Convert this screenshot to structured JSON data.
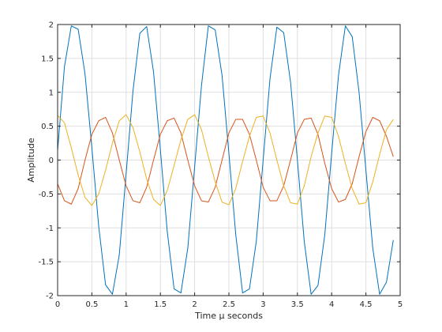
{
  "chart_data": {
    "type": "line",
    "title": "",
    "xlabel": "Time μ seconds",
    "ylabel": "Amplitude",
    "xlim": [
      0,
      5
    ],
    "ylim": [
      -2,
      2
    ],
    "grid": true,
    "x_ticks": [
      "0",
      "0.5",
      "1",
      "1.5",
      "2",
      "2.5",
      "3",
      "3.5",
      "4",
      "4.5",
      "5"
    ],
    "y_ticks": [
      "-2",
      "-1.5",
      "-1",
      "-0.5",
      "0",
      "0.5",
      "1",
      "1.5",
      "2"
    ],
    "series": [
      {
        "color": "#0072BD",
        "points": [
          [
            0,
            0.14
          ],
          [
            0.1,
            1.38
          ],
          [
            0.2,
            1.98
          ],
          [
            0.3,
            1.93
          ],
          [
            0.4,
            1.27
          ],
          [
            0.5,
            0.18
          ],
          [
            0.6,
            -0.98
          ],
          [
            0.7,
            -1.84
          ],
          [
            0.8,
            -1.98
          ],
          [
            0.9,
            -1.4
          ],
          [
            1.0,
            -0.2
          ],
          [
            1.1,
            1.02
          ],
          [
            1.2,
            1.87
          ],
          [
            1.3,
            1.97
          ],
          [
            1.4,
            1.3
          ],
          [
            1.5,
            0.15
          ],
          [
            1.6,
            -1.05
          ],
          [
            1.7,
            -1.9
          ],
          [
            1.8,
            -1.96
          ],
          [
            1.9,
            -1.3
          ],
          [
            2.0,
            -0.1
          ],
          [
            2.1,
            1.1
          ],
          [
            2.2,
            1.98
          ],
          [
            2.3,
            1.92
          ],
          [
            2.4,
            1.25
          ],
          [
            2.5,
            0.1
          ],
          [
            2.6,
            -1.1
          ],
          [
            2.7,
            -1.96
          ],
          [
            2.8,
            -1.9
          ],
          [
            2.9,
            -1.2
          ],
          [
            3.0,
            0.0
          ],
          [
            3.1,
            1.2
          ],
          [
            3.2,
            1.96
          ],
          [
            3.3,
            1.88
          ],
          [
            3.4,
            1.15
          ],
          [
            3.5,
            0.0
          ],
          [
            3.6,
            -1.2
          ],
          [
            3.7,
            -1.98
          ],
          [
            3.8,
            -1.85
          ],
          [
            3.9,
            -1.1
          ],
          [
            4.0,
            0.1
          ],
          [
            4.1,
            1.25
          ],
          [
            4.2,
            1.98
          ],
          [
            4.3,
            1.82
          ],
          [
            4.4,
            1.0
          ],
          [
            4.5,
            -0.15
          ],
          [
            4.6,
            -1.3
          ],
          [
            4.7,
            -1.98
          ],
          [
            4.8,
            -1.8
          ],
          [
            4.9,
            -1.18
          ]
        ]
      },
      {
        "color": "#D95319",
        "points": [
          [
            0,
            -0.35
          ],
          [
            0.1,
            -0.6
          ],
          [
            0.2,
            -0.65
          ],
          [
            0.3,
            -0.42
          ],
          [
            0.4,
            0.0
          ],
          [
            0.5,
            0.38
          ],
          [
            0.6,
            0.58
          ],
          [
            0.7,
            0.63
          ],
          [
            0.8,
            0.4
          ],
          [
            0.9,
            0.0
          ],
          [
            1.0,
            -0.38
          ],
          [
            1.1,
            -0.6
          ],
          [
            1.2,
            -0.63
          ],
          [
            1.3,
            -0.4
          ],
          [
            1.4,
            0.0
          ],
          [
            1.5,
            0.38
          ],
          [
            1.6,
            0.58
          ],
          [
            1.7,
            0.62
          ],
          [
            1.8,
            0.4
          ],
          [
            1.9,
            0.0
          ],
          [
            2.0,
            -0.38
          ],
          [
            2.1,
            -0.6
          ],
          [
            2.2,
            -0.62
          ],
          [
            2.3,
            -0.4
          ],
          [
            2.4,
            0.0
          ],
          [
            2.5,
            0.4
          ],
          [
            2.6,
            0.6
          ],
          [
            2.7,
            0.6
          ],
          [
            2.8,
            0.38
          ],
          [
            2.9,
            0.0
          ],
          [
            3.0,
            -0.4
          ],
          [
            3.1,
            -0.6
          ],
          [
            3.2,
            -0.6
          ],
          [
            3.3,
            -0.38
          ],
          [
            3.4,
            0.0
          ],
          [
            3.5,
            0.4
          ],
          [
            3.6,
            0.6
          ],
          [
            3.7,
            0.62
          ],
          [
            3.8,
            0.38
          ],
          [
            3.9,
            -0.05
          ],
          [
            4.0,
            -0.42
          ],
          [
            4.1,
            -0.62
          ],
          [
            4.2,
            -0.58
          ],
          [
            4.3,
            -0.35
          ],
          [
            4.4,
            0.05
          ],
          [
            4.5,
            0.42
          ],
          [
            4.6,
            0.63
          ],
          [
            4.7,
            0.58
          ],
          [
            4.8,
            0.35
          ],
          [
            4.9,
            0.05
          ]
        ]
      },
      {
        "color": "#EDB120",
        "points": [
          [
            0,
            0.66
          ],
          [
            0.1,
            0.55
          ],
          [
            0.2,
            0.18
          ],
          [
            0.3,
            -0.22
          ],
          [
            0.4,
            -0.55
          ],
          [
            0.5,
            -0.67
          ],
          [
            0.6,
            -0.5
          ],
          [
            0.7,
            -0.15
          ],
          [
            0.8,
            0.25
          ],
          [
            0.9,
            0.58
          ],
          [
            1.0,
            0.67
          ],
          [
            1.1,
            0.48
          ],
          [
            1.2,
            0.12
          ],
          [
            1.3,
            -0.28
          ],
          [
            1.4,
            -0.58
          ],
          [
            1.5,
            -0.67
          ],
          [
            1.6,
            -0.45
          ],
          [
            1.7,
            -0.08
          ],
          [
            1.8,
            0.3
          ],
          [
            1.9,
            0.6
          ],
          [
            2.0,
            0.67
          ],
          [
            2.1,
            0.45
          ],
          [
            2.2,
            0.05
          ],
          [
            2.3,
            -0.32
          ],
          [
            2.4,
            -0.62
          ],
          [
            2.5,
            -0.66
          ],
          [
            2.6,
            -0.42
          ],
          [
            2.7,
            -0.02
          ],
          [
            2.8,
            0.35
          ],
          [
            2.9,
            0.63
          ],
          [
            3.0,
            0.65
          ],
          [
            3.1,
            0.4
          ],
          [
            3.2,
            0.0
          ],
          [
            3.3,
            -0.38
          ],
          [
            3.4,
            -0.63
          ],
          [
            3.5,
            -0.65
          ],
          [
            3.6,
            -0.38
          ],
          [
            3.7,
            0.05
          ],
          [
            3.8,
            0.4
          ],
          [
            3.9,
            0.65
          ],
          [
            4.0,
            0.63
          ],
          [
            4.1,
            0.35
          ],
          [
            4.2,
            -0.05
          ],
          [
            4.3,
            -0.42
          ],
          [
            4.4,
            -0.65
          ],
          [
            4.5,
            -0.63
          ],
          [
            4.6,
            -0.32
          ],
          [
            4.7,
            0.08
          ],
          [
            4.8,
            0.45
          ],
          [
            4.9,
            0.6
          ]
        ]
      }
    ]
  }
}
